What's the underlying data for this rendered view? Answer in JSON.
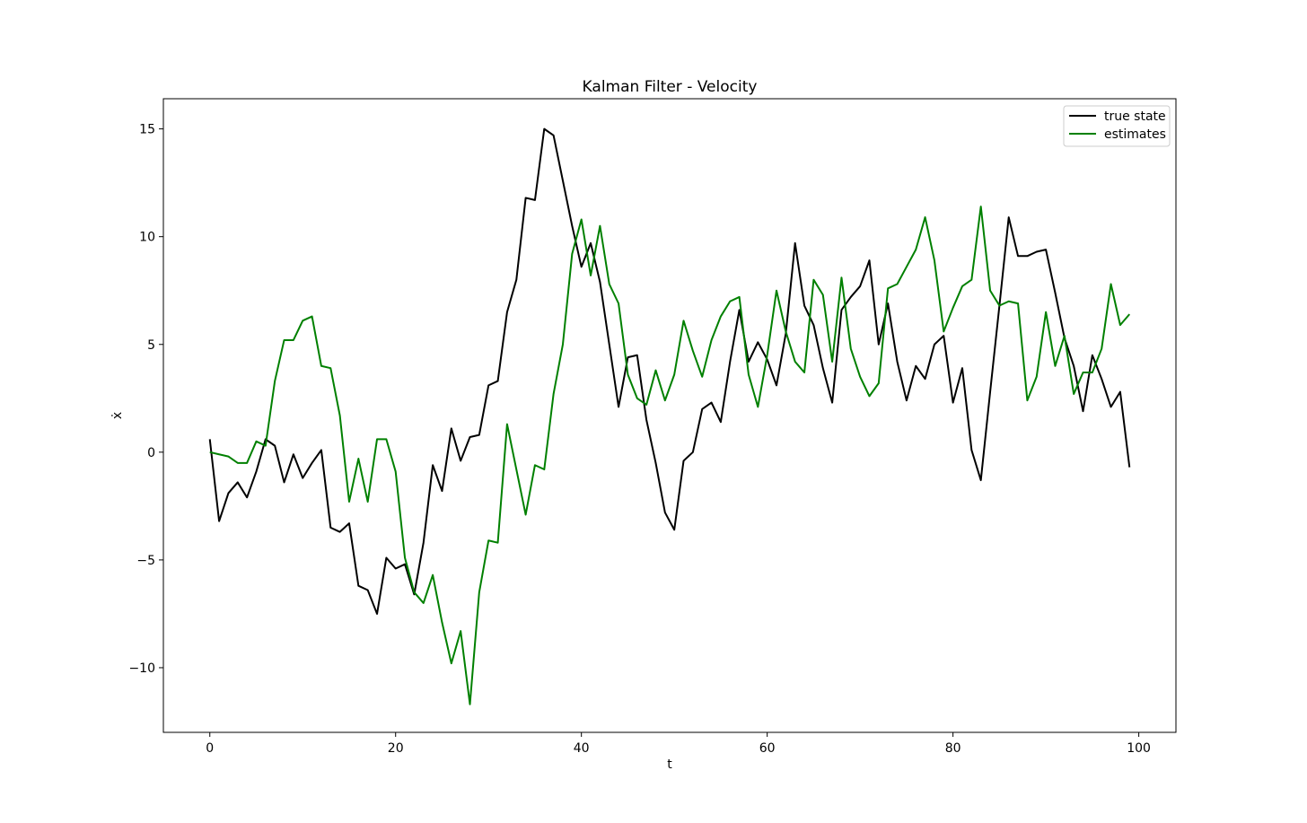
{
  "chart_data": {
    "type": "line",
    "title": "Kalman Filter - Velocity",
    "xlabel": "t",
    "ylabel": "ẋ",
    "xlim": [
      -5,
      104
    ],
    "ylim": [
      -13.0,
      16.4
    ],
    "xticks": [
      0,
      20,
      40,
      60,
      80,
      100
    ],
    "yticks": [
      -10,
      -5,
      0,
      5,
      10,
      15
    ],
    "grid": false,
    "legend": "top-right",
    "x": [
      0,
      1,
      2,
      3,
      4,
      5,
      6,
      7,
      8,
      9,
      10,
      11,
      12,
      13,
      14,
      15,
      16,
      17,
      18,
      19,
      20,
      21,
      22,
      23,
      24,
      25,
      26,
      27,
      28,
      29,
      30,
      31,
      32,
      33,
      34,
      35,
      36,
      37,
      38,
      39,
      40,
      41,
      42,
      43,
      44,
      45,
      46,
      47,
      48,
      49,
      50,
      51,
      52,
      53,
      54,
      55,
      56,
      57,
      58,
      59,
      60,
      61,
      62,
      63,
      64,
      65,
      66,
      67,
      68,
      69,
      70,
      71,
      72,
      73,
      74,
      75,
      76,
      77,
      78,
      79,
      80,
      81,
      82,
      83,
      84,
      85,
      86,
      87,
      88,
      89,
      90,
      91,
      92,
      93,
      94,
      95,
      96,
      97,
      98,
      99
    ],
    "series": [
      {
        "name": "true state",
        "color": "#000000",
        "values": [
          0.6,
          -3.2,
          -1.9,
          -1.4,
          -2.1,
          -0.9,
          0.6,
          0.3,
          -1.4,
          -0.1,
          -1.2,
          -0.5,
          0.1,
          -3.5,
          -3.7,
          -3.3,
          -6.2,
          -6.4,
          -7.5,
          -4.9,
          -5.4,
          -5.2,
          -6.6,
          -4.2,
          -0.6,
          -1.8,
          1.1,
          -0.4,
          0.7,
          0.8,
          3.1,
          3.3,
          6.5,
          8.0,
          11.8,
          11.7,
          15.0,
          14.7,
          12.6,
          10.5,
          8.6,
          9.7,
          7.9,
          5.0,
          2.1,
          4.4,
          4.5,
          1.5,
          -0.5,
          -2.8,
          -3.6,
          -0.4,
          0.0,
          2.0,
          2.3,
          1.4,
          4.2,
          6.6,
          4.2,
          5.1,
          4.3,
          3.1,
          5.5,
          9.7,
          6.8,
          5.9,
          3.9,
          2.3,
          6.6,
          7.2,
          7.7,
          8.9,
          5.0,
          6.9,
          4.2,
          2.4,
          4.0,
          3.4,
          5.0,
          5.4,
          2.3,
          3.9,
          0.1,
          -1.3,
          2.8,
          6.8,
          10.9,
          9.1,
          9.1,
          9.3,
          9.4,
          7.4,
          5.3,
          4.0,
          1.9,
          4.5,
          3.4,
          2.1,
          2.8,
          -0.7
        ]
      },
      {
        "name": "estimates",
        "color": "#008000",
        "values": [
          0.0,
          -0.1,
          -0.2,
          -0.5,
          -0.5,
          0.5,
          0.3,
          3.3,
          5.2,
          5.2,
          6.1,
          6.3,
          4.0,
          3.9,
          1.7,
          -2.3,
          -0.3,
          -2.3,
          0.6,
          0.6,
          -0.9,
          -4.9,
          -6.5,
          -7.0,
          -5.7,
          -7.9,
          -9.8,
          -8.3,
          -11.7,
          -6.5,
          -4.1,
          -4.2,
          1.3,
          -0.8,
          -2.9,
          -0.6,
          -0.8,
          2.7,
          5.0,
          9.2,
          10.8,
          8.2,
          10.5,
          7.8,
          6.9,
          3.6,
          2.5,
          2.2,
          3.8,
          2.4,
          3.6,
          6.1,
          4.7,
          3.5,
          5.2,
          6.3,
          7.0,
          7.2,
          3.6,
          2.1,
          4.5,
          7.5,
          5.6,
          4.2,
          3.7,
          8.0,
          7.3,
          4.2,
          8.1,
          4.8,
          3.5,
          2.6,
          3.2,
          7.6,
          7.8,
          8.6,
          9.4,
          10.9,
          8.9,
          5.6,
          6.7,
          7.7,
          8.0,
          11.4,
          7.5,
          6.8,
          7.0,
          6.9,
          2.4,
          3.5,
          6.5,
          4.0,
          5.4,
          2.7,
          3.7,
          3.7,
          4.8,
          7.8,
          5.9,
          6.4
        ]
      }
    ]
  }
}
